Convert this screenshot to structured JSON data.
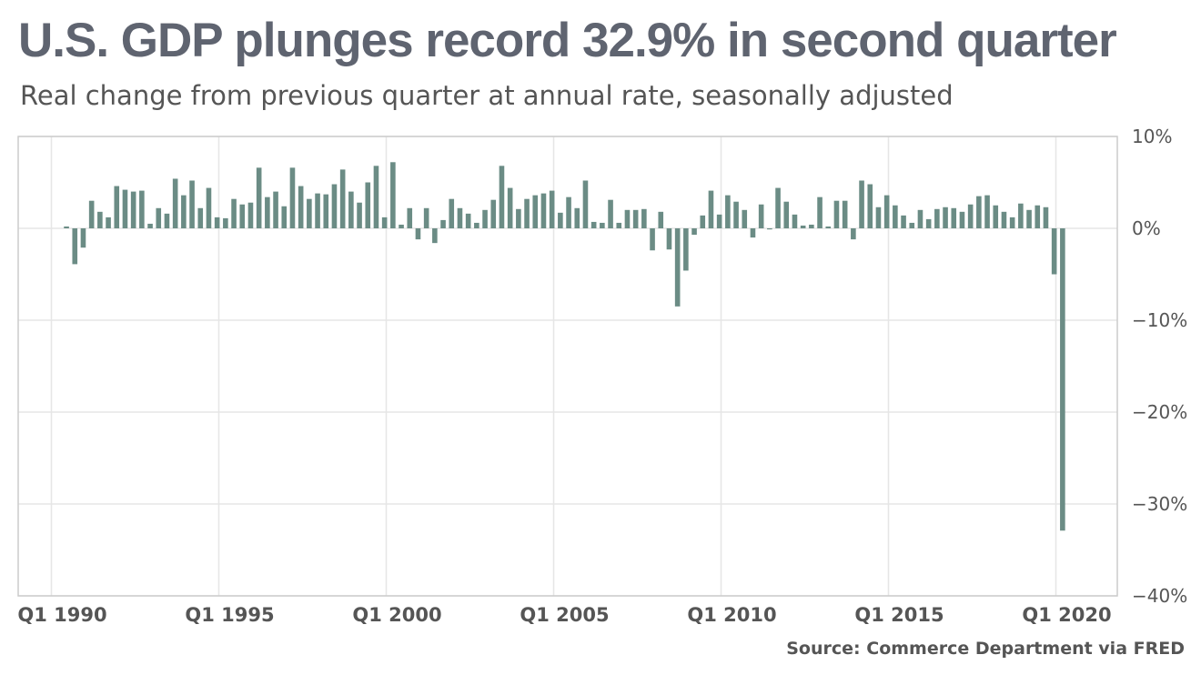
{
  "title": "U.S. GDP plunges record 32.9% in second quarter",
  "subtitle": "Real change from previous quarter at annual rate, seasonally adjusted",
  "source": "Source: Commerce Department via FRED",
  "colors": {
    "bar": "#6b8c85",
    "grid": "#e6e6e6",
    "frame": "#cccccc",
    "text": "#555555",
    "title": "#5f6470"
  },
  "chart_data": {
    "type": "bar",
    "title": "U.S. GDP plunges record 32.9% in second quarter",
    "subtitle": "Real change from previous quarter at annual rate, seasonally adjusted",
    "ylim": [
      -40,
      10
    ],
    "yticks": [
      10,
      0,
      -10,
      -20,
      -30,
      -40
    ],
    "ytick_labels": [
      "10%",
      "0%",
      "−10%",
      "−20%",
      "−30%",
      "−40%"
    ],
    "xticks": [
      "Q1 1990",
      "Q1 1995",
      "Q1 2000",
      "Q1 2005",
      "Q1 2010",
      "Q1 2015",
      "Q1 2020"
    ],
    "grid": true,
    "start": "Q1 1990",
    "values": [
      0.2,
      -3.9,
      -2.1,
      3.0,
      1.8,
      1.2,
      4.6,
      4.2,
      4.0,
      4.1,
      0.5,
      2.2,
      1.6,
      5.4,
      3.6,
      5.2,
      2.2,
      4.4,
      1.2,
      1.1,
      3.2,
      2.6,
      2.8,
      6.6,
      3.4,
      4.0,
      2.4,
      6.6,
      4.6,
      3.2,
      3.8,
      3.7,
      4.8,
      6.4,
      4.0,
      2.8,
      5.0,
      6.8,
      1.2,
      7.2,
      0.4,
      2.2,
      -1.2,
      2.2,
      -1.6,
      0.9,
      3.2,
      2.2,
      1.6,
      0.6,
      2.0,
      3.1,
      6.8,
      4.4,
      2.1,
      3.2,
      3.6,
      3.8,
      4.1,
      1.7,
      3.4,
      2.2,
      5.2,
      0.7,
      0.6,
      3.1,
      0.6,
      2.0,
      2.0,
      2.1,
      -2.4,
      1.8,
      -2.3,
      -8.5,
      -4.6,
      -0.7,
      1.4,
      4.1,
      1.5,
      3.6,
      2.9,
      2.0,
      -1.0,
      2.6,
      -0.1,
      4.4,
      2.9,
      1.5,
      0.3,
      0.4,
      3.4,
      0.2,
      3.0,
      3.0,
      -1.2,
      5.2,
      4.8,
      2.3,
      3.6,
      2.5,
      1.4,
      0.6,
      2.0,
      1.0,
      2.1,
      2.3,
      2.2,
      1.8,
      2.6,
      3.5,
      3.6,
      2.5,
      1.8,
      1.2,
      2.7,
      2.0,
      2.5,
      2.3,
      -5.0,
      -32.9
    ]
  }
}
